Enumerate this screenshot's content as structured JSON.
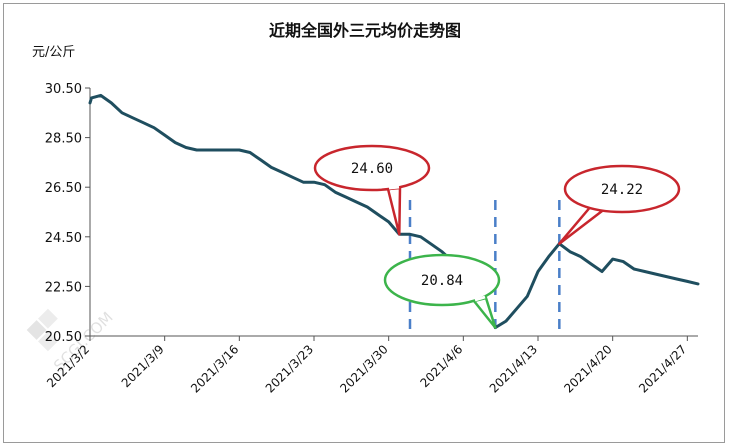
{
  "chart_data": {
    "type": "line",
    "title": "近期全国外三元均价走势图",
    "ylabel": "元/公斤",
    "xlabel": "",
    "ylim": [
      20.5,
      30.5
    ],
    "y_ticks": [
      "30.50",
      "28.50",
      "26.50",
      "24.50",
      "22.50",
      "20.50"
    ],
    "y_tick_values": [
      30.5,
      28.5,
      26.5,
      24.5,
      22.5,
      20.5
    ],
    "x_range": [
      "2021-03-02",
      "2021-04-28"
    ],
    "x_ticks": [
      "2021/3/2",
      "2021/3/9",
      "2021/3/16",
      "2021/3/23",
      "2021/3/30",
      "2021/4/6",
      "2021/4/13",
      "2021/4/20",
      "2021/4/27"
    ],
    "x_tick_dates": [
      "2021-03-02",
      "2021-03-09",
      "2021-03-16",
      "2021-03-23",
      "2021-03-30",
      "2021-04-06",
      "2021-04-13",
      "2021-04-20",
      "2021-04-27"
    ],
    "series": [
      {
        "color": "#1f4e5f",
        "points": [
          [
            "2021-03-02",
            29.9
          ],
          [
            "2021-03-02",
            30.1
          ],
          [
            "2021-03-03",
            30.2
          ],
          [
            "2021-03-04",
            29.9
          ],
          [
            "2021-03-05",
            29.5
          ],
          [
            "2021-03-06",
            29.3
          ],
          [
            "2021-03-07",
            29.1
          ],
          [
            "2021-03-08",
            28.9
          ],
          [
            "2021-03-09",
            28.6
          ],
          [
            "2021-03-10",
            28.3
          ],
          [
            "2021-03-11",
            28.1
          ],
          [
            "2021-03-12",
            28.0
          ],
          [
            "2021-03-13",
            28.0
          ],
          [
            "2021-03-14",
            28.0
          ],
          [
            "2021-03-15",
            28.0
          ],
          [
            "2021-03-16",
            28.0
          ],
          [
            "2021-03-17",
            27.9
          ],
          [
            "2021-03-18",
            27.6
          ],
          [
            "2021-03-19",
            27.3
          ],
          [
            "2021-03-20",
            27.1
          ],
          [
            "2021-03-21",
            26.9
          ],
          [
            "2021-03-22",
            26.7
          ],
          [
            "2021-03-23",
            26.7
          ],
          [
            "2021-03-24",
            26.6
          ],
          [
            "2021-03-25",
            26.3
          ],
          [
            "2021-03-26",
            26.1
          ],
          [
            "2021-03-27",
            25.9
          ],
          [
            "2021-03-28",
            25.7
          ],
          [
            "2021-03-29",
            25.4
          ],
          [
            "2021-03-30",
            25.1
          ],
          [
            "2021-03-31",
            24.6
          ],
          [
            "2021-04-01",
            24.6
          ],
          [
            "2021-04-02",
            24.5
          ],
          [
            "2021-04-03",
            24.2
          ],
          [
            "2021-04-04",
            23.9
          ],
          [
            "2021-04-05",
            23.5
          ],
          [
            "2021-04-06",
            23.1
          ],
          [
            "2021-04-07",
            22.5
          ],
          [
            "2021-04-08",
            21.8
          ],
          [
            "2021-04-09",
            20.84
          ],
          [
            "2021-04-10",
            21.1
          ],
          [
            "2021-04-11",
            21.6
          ],
          [
            "2021-04-12",
            22.1
          ],
          [
            "2021-04-13",
            23.1
          ],
          [
            "2021-04-14",
            23.7
          ],
          [
            "2021-04-15",
            24.22
          ],
          [
            "2021-04-16",
            23.9
          ],
          [
            "2021-04-17",
            23.7
          ],
          [
            "2021-04-18",
            23.4
          ],
          [
            "2021-04-19",
            23.1
          ],
          [
            "2021-04-20",
            23.6
          ],
          [
            "2021-04-21",
            23.5
          ],
          [
            "2021-04-22",
            23.2
          ],
          [
            "2021-04-23",
            23.1
          ],
          [
            "2021-04-24",
            23.0
          ],
          [
            "2021-04-25",
            22.9
          ],
          [
            "2021-04-26",
            22.8
          ],
          [
            "2021-04-27",
            22.7
          ],
          [
            "2021-04-28",
            22.6
          ]
        ]
      }
    ],
    "reference_lines": [
      {
        "date": "2021-04-01",
        "color": "#4a7fc8"
      },
      {
        "date": "2021-04-09",
        "color": "#4a7fc8"
      },
      {
        "date": "2021-04-15",
        "color": "#4a7fc8"
      }
    ],
    "annotations": [
      {
        "text": "24.60",
        "date": "2021-03-31",
        "value": 24.6,
        "color": "#c8262d"
      },
      {
        "text": "20.84",
        "date": "2021-04-09",
        "value": 20.84,
        "color": "#3cb44b"
      },
      {
        "text": "24.22",
        "date": "2021-04-15",
        "value": 24.22,
        "color": "#c8262d"
      }
    ],
    "grid": false,
    "legend": "none"
  },
  "watermark": "SCGJ.COM"
}
